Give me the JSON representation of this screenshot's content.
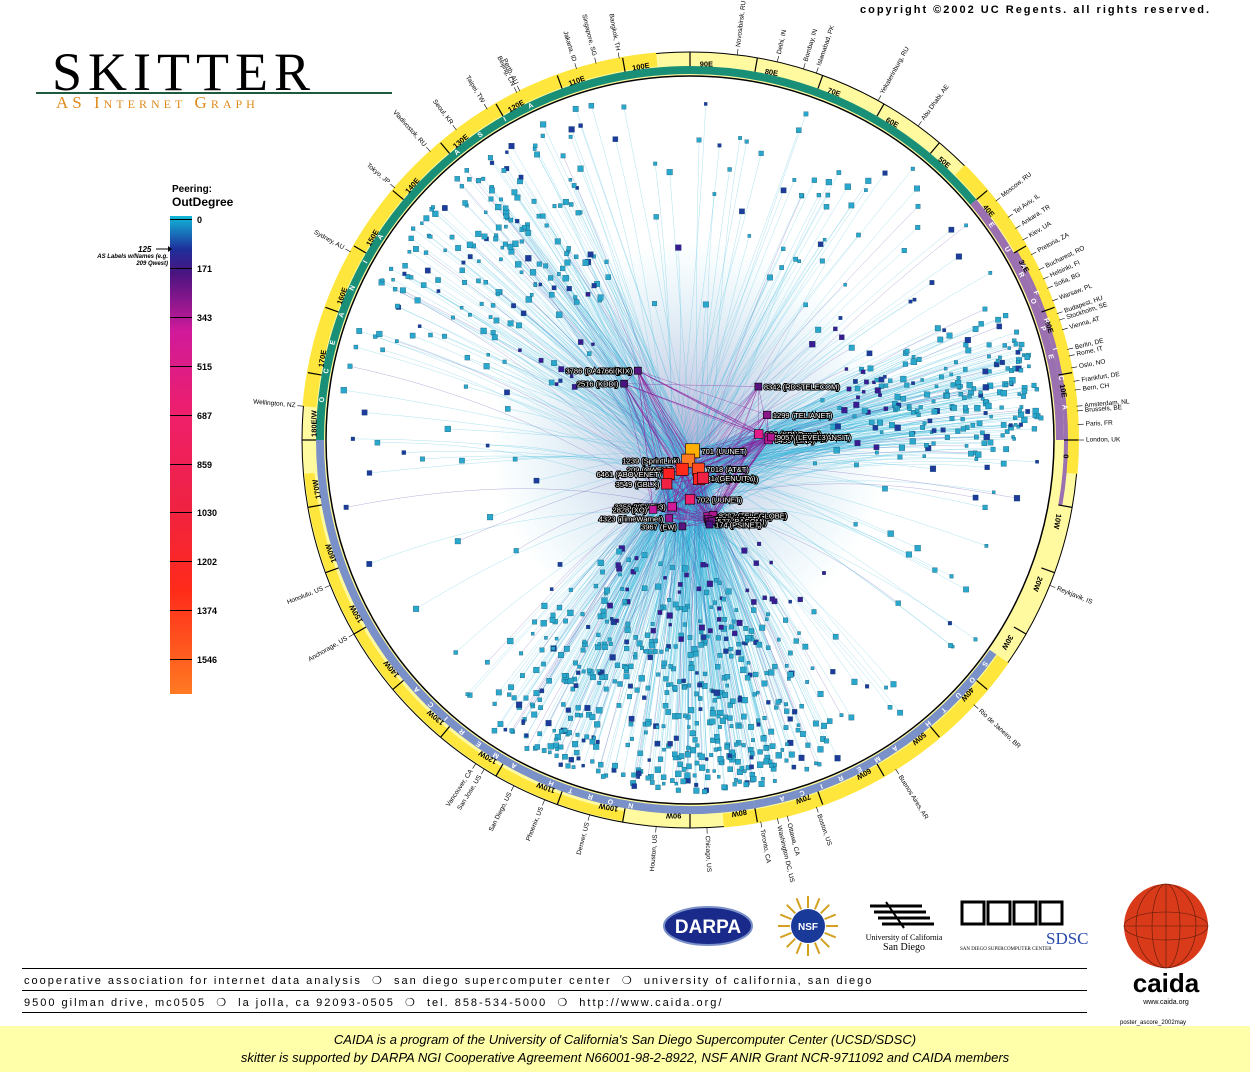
{
  "copyright": "copyright ©2002 UC Regents.  all rights reserved.",
  "title": "SKITTER",
  "subtitle": "AS Internet Graph",
  "legend": {
    "title_line1": "Peering:",
    "title_line2": "OutDegree",
    "ticks": [
      "0",
      "171",
      "343",
      "515",
      "687",
      "859",
      "1030",
      "1202",
      "1374",
      "1546"
    ],
    "label_threshold": "125",
    "label_note": "AS Labels w/Names (e.g. 209 Qwest)"
  },
  "ring": {
    "longitudes": [
      "90E",
      "80E",
      "70E",
      "60E",
      "50E",
      "40E",
      "30E",
      "20E",
      "10E",
      "0",
      "10W",
      "20W",
      "30W",
      "40W",
      "50W",
      "60W",
      "70W",
      "80W",
      "90W",
      "100W",
      "110W",
      "120W",
      "130W",
      "140W",
      "150W",
      "160W",
      "170W",
      "180E/W",
      "170E",
      "160E",
      "150E",
      "140E",
      "130E",
      "120E",
      "110E",
      "100E"
    ],
    "continents": [
      "ASIA",
      "EUROPE",
      "AFRICA",
      "SOUTH AMERICA",
      "NORTH AMERICA",
      "OCEANIA"
    ],
    "cities": [
      {
        "name": "Novosibirsk, RU",
        "lon": 83
      },
      {
        "name": "Delhi, IN",
        "lon": 77
      },
      {
        "name": "Bombay, IN",
        "lon": 73
      },
      {
        "name": "Islamabad, PK",
        "lon": 71
      },
      {
        "name": "Yekaterinburg, RU",
        "lon": 61
      },
      {
        "name": "Abu Dhabi, AE",
        "lon": 54
      },
      {
        "name": "Moscow, RU",
        "lon": 38
      },
      {
        "name": "Tel Aviv, IL",
        "lon": 35
      },
      {
        "name": "Ankara, TR",
        "lon": 33
      },
      {
        "name": "Kiev, UA",
        "lon": 31
      },
      {
        "name": "Pretoria, ZA",
        "lon": 28.5
      },
      {
        "name": "Bucharest, RO",
        "lon": 26
      },
      {
        "name": "Helsinki, FI",
        "lon": 24.5
      },
      {
        "name": "Sofia, BG",
        "lon": 23
      },
      {
        "name": "Warsaw, PL",
        "lon": 21
      },
      {
        "name": "Budapest, HU",
        "lon": 19
      },
      {
        "name": "Stockholm, SE",
        "lon": 18
      },
      {
        "name": "Vienna, AT",
        "lon": 16.5
      },
      {
        "name": "Berlin, DE",
        "lon": 13.5
      },
      {
        "name": "Rome, IT",
        "lon": 12.5
      },
      {
        "name": "Oslo, NO",
        "lon": 10.7
      },
      {
        "name": "Frankfurt, DE",
        "lon": 8.7
      },
      {
        "name": "Bern, CH",
        "lon": 7.4
      },
      {
        "name": "Amsterdam, NL",
        "lon": 5
      },
      {
        "name": "Brussels, BE",
        "lon": 4.3
      },
      {
        "name": "Paris, FR",
        "lon": 2.3
      },
      {
        "name": "London, UK",
        "lon": 0
      },
      {
        "name": "Reykjavik, IS",
        "lon": -22
      },
      {
        "name": "Rio de Janeiro, BR",
        "lon": -43
      },
      {
        "name": "Buenos Aires, AR",
        "lon": -58
      },
      {
        "name": "Boston, US",
        "lon": -71
      },
      {
        "name": "Ottawa, CA",
        "lon": -75.5
      },
      {
        "name": "Washington DC, US",
        "lon": -77
      },
      {
        "name": "Toronto, CA",
        "lon": -79.5
      },
      {
        "name": "Chicago, US",
        "lon": -87.5
      },
      {
        "name": "Houston, US",
        "lon": -95
      },
      {
        "name": "Denver, US",
        "lon": -105
      },
      {
        "name": "Phoenix, US",
        "lon": -112
      },
      {
        "name": "San Diego, US",
        "lon": -117
      },
      {
        "name": "San Jose, US",
        "lon": -122
      },
      {
        "name": "Vancouver, CA",
        "lon": -123.5
      },
      {
        "name": "Anchorage, US",
        "lon": -150
      },
      {
        "name": "Honolulu, US",
        "lon": -158
      },
      {
        "name": "Wellington, NZ",
        "lon": 175
      },
      {
        "name": "Sydney, AU",
        "lon": 151
      },
      {
        "name": "Tokyo, JP",
        "lon": 139.5
      },
      {
        "name": "Vladivostok, RU",
        "lon": 132
      },
      {
        "name": "Seoul, KR",
        "lon": 127
      },
      {
        "name": "Taipei, TW",
        "lon": 121.5
      },
      {
        "name": "Beijing, CN",
        "lon": 116.5
      },
      {
        "name": "Perth, AU",
        "lon": 116
      },
      {
        "name": "Jakarta, ID",
        "lon": 107
      },
      {
        "name": "Singapore, SG",
        "lon": 104
      },
      {
        "name": "Bangkok, TH",
        "lon": 100.5
      }
    ]
  },
  "nodes": [
    {
      "label": "701 (UUNET)",
      "lon": -77,
      "deg": 1546,
      "color": "#ffb000"
    },
    {
      "label": "1239 (SprintLink)",
      "lon": -95,
      "deg": 1374,
      "color": "#ff7a22"
    },
    {
      "label": "7018 (AT&T)",
      "lon": -74,
      "deg": 1202,
      "color": "#ff4a22"
    },
    {
      "label": "209 (QWEST)",
      "lon": -105,
      "deg": 1202,
      "color": "#ff2a1a"
    },
    {
      "label": "3561 (CWUSA)",
      "lon": -77,
      "deg": 1030,
      "color": "#ff2020"
    },
    {
      "label": "1 (GENUITY)",
      "lon": -71,
      "deg": 1030,
      "color": "#ef2244"
    },
    {
      "label": "6461 (ABOVENET)",
      "lon": -122,
      "deg": 1030,
      "color": "#ff2020"
    },
    {
      "label": "3549 (GBLX)",
      "lon": -118,
      "deg": 859,
      "color": "#ef2244"
    },
    {
      "label": "702 (UUNET)",
      "lon": -90,
      "deg": 687,
      "color": "#ef1f6a"
    },
    {
      "label": "2914 (VERIO)",
      "lon": -105,
      "deg": 515,
      "color": "#e31a88"
    },
    {
      "label": "3356 (LEVEL3)",
      "lon": -105,
      "deg": 515,
      "color": "#d01a9a"
    },
    {
      "label": "6453 (TELEGLOBE)",
      "lon": -73,
      "deg": 343,
      "color": "#d01a9a"
    },
    {
      "label": "2828 (XO)",
      "lon": -118,
      "deg": 343,
      "color": "#c0189a"
    },
    {
      "label": "6347 (DIAMOND)",
      "lon": -77,
      "deg": 343,
      "color": "#c0189a"
    },
    {
      "label": "8297 (TELEGLOBE)",
      "lon": -73,
      "deg": 343,
      "color": "#b0188e"
    },
    {
      "label": "4323 (TimeWarner)",
      "lon": -105,
      "deg": 300,
      "color": "#9a1890"
    },
    {
      "label": "703 (UUNET)",
      "lon": -77,
      "deg": 300,
      "color": "#8a1688"
    },
    {
      "label": "2548 (ICIX-MD)",
      "lon": -77,
      "deg": 250,
      "color": "#7a1680"
    },
    {
      "label": "577 (BACOM)",
      "lon": -75,
      "deg": 250,
      "color": "#6a1480"
    },
    {
      "label": "3967 (EW)",
      "lon": -95,
      "deg": 200,
      "color": "#5a1480"
    },
    {
      "label": "174 (PSINET)",
      "lon": -77,
      "deg": 200,
      "color": "#4a1480"
    },
    {
      "label": "1755 (EBONE)",
      "lon": 2,
      "deg": 343,
      "color": "#d01a9a"
    },
    {
      "label": "286 (KPNQwest)",
      "lon": 5,
      "deg": 515,
      "color": "#e31a88"
    },
    {
      "label": "5511 (OPENTRANSIT)",
      "lon": 2.3,
      "deg": 343,
      "color": "#c0189a"
    },
    {
      "label": "5459 (LINX)",
      "lon": 0,
      "deg": 343,
      "color": "#c0189a"
    },
    {
      "label": "9057 (LEVEL3)",
      "lon": 2,
      "deg": 300,
      "color": "#b0188e"
    },
    {
      "label": "1299 (TELIANET)",
      "lon": 18,
      "deg": 300,
      "color": "#8a1688"
    },
    {
      "label": "8342 (RDSTELECOM)",
      "lon": 38,
      "deg": 200,
      "color": "#5a1480"
    },
    {
      "label": "3786 (DACOMNET)",
      "lon": 127,
      "deg": 200,
      "color": "#4a1480"
    },
    {
      "label": "4766 (KIX)",
      "lon": 127,
      "deg": 200,
      "color": "#5a1480"
    },
    {
      "label": "2516 (KDDI)",
      "lon": 139.5,
      "deg": 200,
      "color": "#4a1480"
    }
  ],
  "logos": {
    "darpa": "DARPA",
    "nsf": "NSF",
    "ucsd_line1": "University of California",
    "ucsd_line2": "San Diego",
    "sdsc": "SDSC",
    "sdsc_name": "SAN DIEGO SUPERCOMPUTER CENTER",
    "caida": "caida",
    "caida_url": "www.caida.org"
  },
  "footer": {
    "orgs": [
      "cooperative association for internet data analysis",
      "san diego supercomputer center",
      "university of california, san diego"
    ],
    "address": [
      "9500 gilman drive, mc0505",
      "la jolla, ca  92093-0505",
      "tel. 858-534-5000",
      "http://www.caida.org/"
    ],
    "poster_id": "poster_ascore_2002may",
    "banner_line1": "CAIDA is a program of the University of California's San Diego Supercomputer Center (UCSD/SDSC)",
    "banner_line2": "skitter is supported by DARPA NGI Cooperative Agreement N66001-98-2-8922, NSF ANIR Grant NCR-9711092 and CAIDA members"
  },
  "colors": {
    "ring_yellow": "#ffe63c",
    "ring_pale": "#fffaa0",
    "asia": "#1a8f78",
    "europe": "#9a70b0",
    "africa": "#9a70b0",
    "americas": "#7a90c8",
    "peripheral_node": "#2aa8cc",
    "edge": "#2ab4d8"
  }
}
